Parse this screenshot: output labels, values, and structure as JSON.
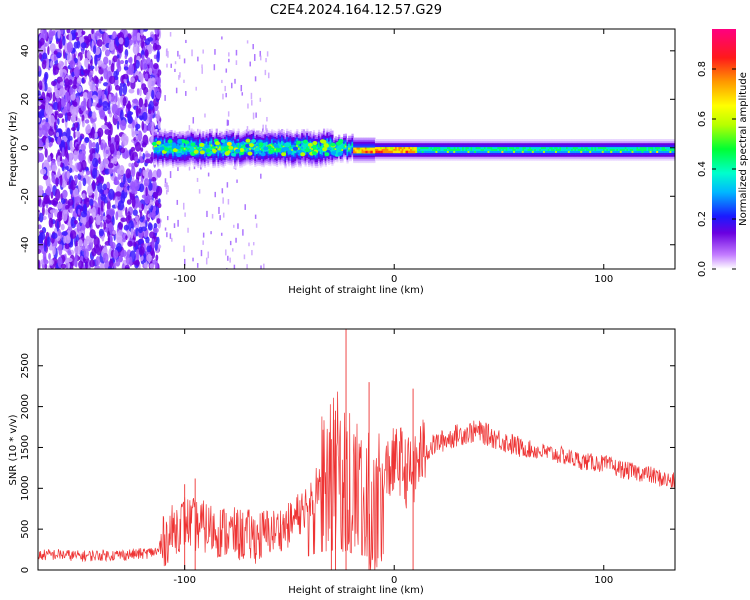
{
  "figure": {
    "title": "C2E4.2024.164.12.57.G29"
  },
  "chart_data": [
    {
      "type": "heatmap",
      "xlabel": "Height of straight line (km)",
      "ylabel": "Frequency (Hz)",
      "xlim": [
        -170,
        134
      ],
      "ylim": [
        -50,
        49
      ],
      "x_ticks": [
        -100,
        0,
        100
      ],
      "y_ticks": [
        -40,
        -20,
        0,
        20,
        40
      ],
      "colorbar": {
        "label": "Normalized spectral amplitude",
        "range": [
          0,
          0.96
        ],
        "ticks": [
          0.0,
          0.2,
          0.4,
          0.6,
          0.8
        ]
      },
      "description_points": [
        {
          "x": -170,
          "amplitude": 0.15
        },
        {
          "x": -115,
          "amplitude": 0.35
        },
        {
          "x": -60,
          "amplitude": 0.5
        },
        {
          "x": -20,
          "amplitude": 0.65
        },
        {
          "x": 0,
          "amplitude": 0.9
        },
        {
          "x": 50,
          "amplitude": 0.5
        },
        {
          "x": 134,
          "amplitude": 0.35
        }
      ]
    },
    {
      "type": "line",
      "xlabel": "Height of straight line (km)",
      "ylabel": "SNR (10 * v/v)",
      "xlim": [
        -170,
        134
      ],
      "ylim": [
        0,
        2950
      ],
      "x_ticks": [
        -100,
        0,
        100
      ],
      "y_ticks": [
        0,
        500,
        1000,
        1500,
        2000,
        2500
      ],
      "color": "#ee3333",
      "series": [
        {
          "x": [
            -170,
            -160,
            -150,
            -140,
            -130,
            -120,
            -112,
            -110,
            -105,
            -100,
            -95,
            -90,
            -85,
            -80,
            -75,
            -70,
            -65,
            -60,
            -55,
            -50,
            -45,
            -40,
            -35,
            -30,
            -27,
            -25,
            -22,
            -20,
            -17,
            -15,
            -12,
            -10,
            -8,
            -5,
            -3,
            0,
            3,
            5,
            8,
            10,
            12,
            15,
            20,
            25,
            30,
            35,
            40,
            45,
            50,
            60,
            70,
            80,
            90,
            100,
            110,
            120,
            130,
            134
          ],
          "y": [
            180,
            190,
            170,
            180,
            185,
            200,
            230,
            350,
            500,
            600,
            550,
            520,
            480,
            460,
            430,
            420,
            400,
            450,
            500,
            550,
            700,
            900,
            1100,
            1200,
            1300,
            1100,
            1200,
            1000,
            1000,
            900,
            800,
            550,
            700,
            1000,
            1250,
            1300,
            1350,
            1200,
            1200,
            1200,
            1400,
            1450,
            1550,
            1600,
            1650,
            1680,
            1700,
            1650,
            1600,
            1500,
            1450,
            1400,
            1330,
            1300,
            1220,
            1180,
            1100,
            1080
          ]
        }
      ],
      "annotations_peaks": [
        {
          "x": -100,
          "y": 1050
        },
        {
          "x": -95,
          "y": 1120
        },
        {
          "x": -30,
          "y": 1600
        },
        {
          "x": -28,
          "y": 1950
        },
        {
          "x": -23,
          "y": 2950
        },
        {
          "x": -12,
          "y": 2300
        },
        {
          "x": 9,
          "y": 2220
        }
      ]
    }
  ]
}
